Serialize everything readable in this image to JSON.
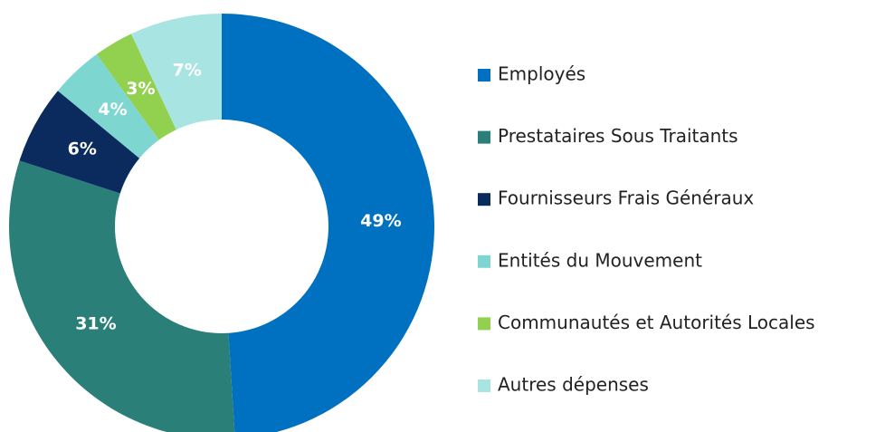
{
  "chart_data": {
    "type": "donut",
    "categories": [
      "Employés",
      "Prestataires Sous Traitants",
      "Fournisseurs Frais Généraux",
      "Entités du Mouvement",
      "Communautés et Autorités Locales",
      "Autres dépenses"
    ],
    "values": [
      49,
      31,
      6,
      4,
      3,
      7
    ],
    "value_labels": [
      "49%",
      "31%",
      "6%",
      "4%",
      "3%",
      "7%"
    ],
    "colors": [
      "#0070c0",
      "#2a8078",
      "#0b2a5e",
      "#7ed6d0",
      "#92d050",
      "#a8e4e2"
    ],
    "legend": "right"
  }
}
